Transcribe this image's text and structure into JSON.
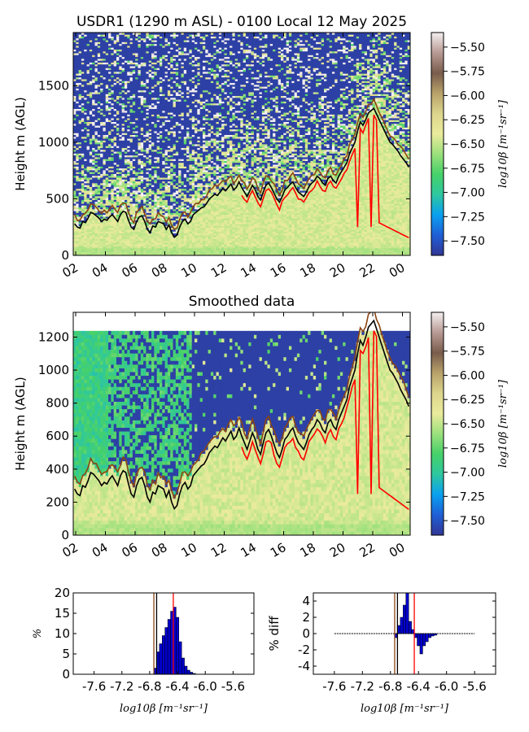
{
  "colors": {
    "colormap": [
      "#313695",
      "#1f5fd6",
      "#0aa0f0",
      "#2ec7a0",
      "#46d169",
      "#9be07c",
      "#eaeb9c",
      "#dcd58c",
      "#b8a269",
      "#7a5c4c",
      "#b89a94",
      "#f4eff0"
    ],
    "boundary_layer_line": "#000000",
    "cloud_base_line": "#ff0000",
    "brown_line": "#8b4513",
    "histogram_bar": "#0000cc"
  },
  "chart_data": [
    {
      "type": "heatmap",
      "title": "USDR1 (1290 m ASL) - 0100 Local 12 May 2025",
      "ylabel": "Height m (AGL)",
      "xlabel": "",
      "x_tick_labels": [
        "02",
        "04",
        "06",
        "08",
        "10",
        "12",
        "14",
        "16",
        "18",
        "20",
        "22",
        "00"
      ],
      "y_ticks": [
        0,
        500,
        1000,
        1500
      ],
      "ylim": [
        0,
        1970
      ],
      "colorbar": {
        "label": "log10β [m⁻¹sr⁻¹]",
        "ticks": [
          "−5.50",
          "−5.75",
          "−6.00",
          "−6.25",
          "−6.50",
          "−6.75",
          "−7.00",
          "−7.25",
          "−7.50"
        ],
        "range": [
          -7.65,
          -5.35
        ]
      }
    },
    {
      "type": "heatmap",
      "title": "Smoothed data",
      "ylabel": "Height m (AGL)",
      "xlabel": "",
      "x_tick_labels": [
        "02",
        "04",
        "06",
        "08",
        "10",
        "12",
        "14",
        "16",
        "18",
        "20",
        "22",
        "00"
      ],
      "y_ticks": [
        0,
        200,
        400,
        600,
        800,
        1000,
        1200
      ],
      "ylim": [
        0,
        1350
      ],
      "colorbar": {
        "label": "log10β [m⁻¹sr⁻¹]",
        "ticks": [
          "−5.50",
          "−5.75",
          "−6.00",
          "−6.25",
          "−6.50",
          "−6.75",
          "−7.00",
          "−7.25",
          "−7.50"
        ],
        "range": [
          -7.65,
          -5.35
        ]
      }
    },
    {
      "type": "bar",
      "title": "",
      "xlabel": "log10β [m⁻¹sr⁻¹]",
      "ylabel": "%",
      "x_tick_labels": [
        "-7.6",
        "-7.2",
        "-6.8",
        "-6.4",
        "-6.0",
        "-5.6"
      ],
      "y_ticks": [
        0,
        5,
        10,
        15,
        20
      ],
      "xlim": [
        -7.9,
        -5.3
      ],
      "ylim": [
        0,
        20
      ],
      "x": [
        -6.72,
        -6.68,
        -6.64,
        -6.6,
        -6.56,
        -6.52,
        -6.48,
        -6.44,
        -6.4,
        -6.36,
        -6.32,
        -6.28,
        -6.24,
        -6.2,
        -6.16
      ],
      "values": [
        1.5,
        5.5,
        7.5,
        9.5,
        11.5,
        13.5,
        15.5,
        16.5,
        14.0,
        8.0,
        4.0,
        2.0,
        1.0,
        0.5,
        0.2
      ],
      "vlines": [
        -6.74,
        -6.7,
        -6.46
      ]
    },
    {
      "type": "bar",
      "title": "",
      "xlabel": "log10β [m⁻¹sr⁻¹]",
      "ylabel": "% diff",
      "x_tick_labels": [
        "-7.6",
        "-7.2",
        "-6.8",
        "-6.4",
        "-6.0",
        "-5.6"
      ],
      "y_ticks": [
        -4,
        -2,
        0,
        2,
        4
      ],
      "xlim": [
        -7.9,
        -5.3
      ],
      "ylim": [
        -5,
        5
      ],
      "x": [
        -6.72,
        -6.68,
        -6.64,
        -6.6,
        -6.56,
        -6.52,
        -6.48,
        -6.44,
        -6.4,
        -6.36,
        -6.32,
        -6.28,
        -6.24,
        -6.2,
        -6.16
      ],
      "values": [
        -0.5,
        1.0,
        2.0,
        3.5,
        5.0,
        1.5,
        0.5,
        -0.5,
        -1.5,
        -2.5,
        -1.5,
        -1.0,
        -0.5,
        -0.3,
        -0.2
      ],
      "vlines": [
        -6.74,
        -6.7,
        -6.46
      ]
    }
  ]
}
